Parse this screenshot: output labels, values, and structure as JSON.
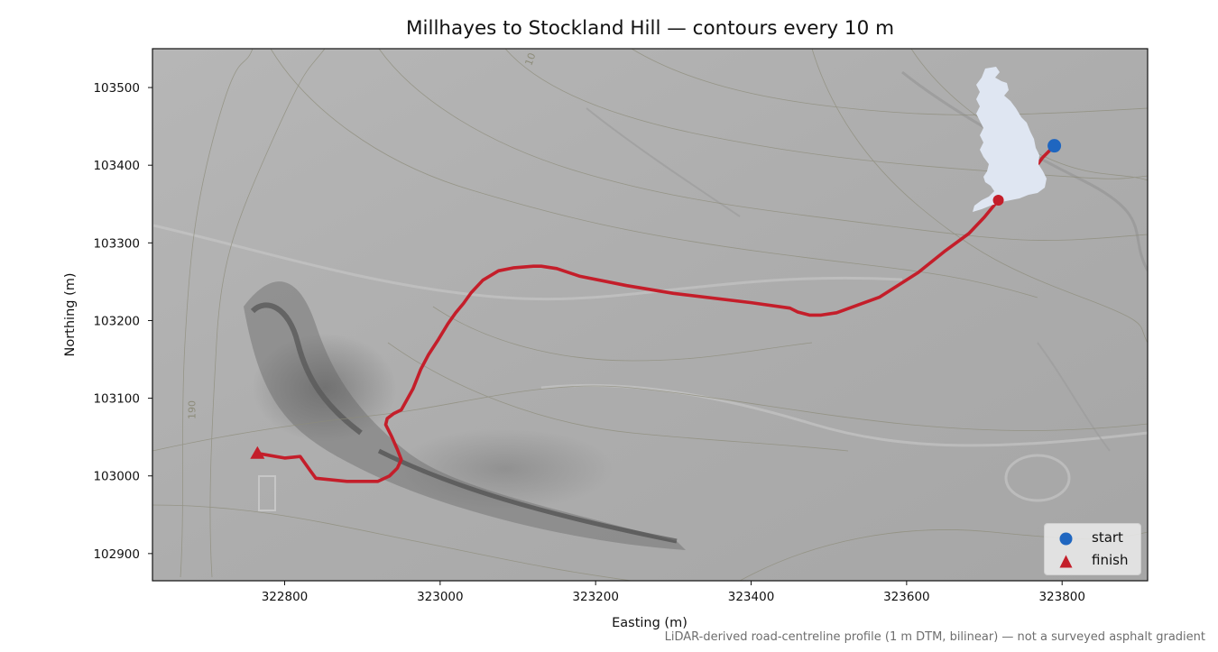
{
  "title": "Millhayes to Stockland Hill — contours every 10 m",
  "footnote": "LiDAR-derived road-centreline profile (1 m DTM, bilinear) — not a surveyed asphalt gradient",
  "chart_data": {
    "type": "map-line",
    "xlabel": "Easting (m)",
    "ylabel": "Northing (m)",
    "xlim": [
      322630,
      323910
    ],
    "ylim": [
      102865,
      103550
    ],
    "xticks": [
      322800,
      323000,
      323200,
      323400,
      323600,
      323800
    ],
    "yticks": [
      102900,
      103000,
      103100,
      103200,
      103300,
      103400,
      103500
    ],
    "contour_interval_m": 10,
    "contour_labels": [
      {
        "text": "190",
        "x": 322685,
        "y": 103085,
        "rotation": -90
      },
      {
        "text": "10",
        "x": 323120,
        "y": 103535,
        "rotation": -70
      }
    ],
    "route": {
      "color": "#c41e2a",
      "x": [
        323790,
        323775,
        323762,
        323740,
        323718,
        323700,
        323680,
        323650,
        323615,
        323565,
        323510,
        323490,
        323475,
        323460,
        323450,
        323400,
        323300,
        323240,
        323180,
        323150,
        323130,
        323120,
        323095,
        323075,
        323055,
        323040,
        323030,
        323020,
        323010,
        322998,
        322985,
        322975,
        322965,
        322950,
        322940,
        322932,
        322930,
        322938,
        322945,
        322950,
        322945,
        322935,
        322920,
        322880,
        322840,
        322832,
        322820,
        322800,
        322765
      ],
      "y": [
        103425,
        103410,
        103392,
        103372,
        103355,
        103333,
        103312,
        103290,
        103262,
        103230,
        103210,
        103207,
        103207,
        103211,
        103216,
        103223,
        103235,
        103245,
        103257,
        103267,
        103270,
        103270,
        103268,
        103264,
        103252,
        103236,
        103222,
        103210,
        103196,
        103176,
        103156,
        103137,
        103112,
        103085,
        103080,
        103074,
        103066,
        103050,
        103034,
        103021,
        103010,
        103000,
        102993,
        102993,
        102997,
        103008,
        103025,
        103023,
        103029
      ]
    },
    "start": {
      "label": "start",
      "x": 323790,
      "y": 103425,
      "color": "#1f66c0",
      "marker": "circle"
    },
    "finish": {
      "label": "finish",
      "x": 322765,
      "y": 103029,
      "color": "#c41e2a",
      "marker": "triangle"
    },
    "inset_map": {
      "name": "uk-locator",
      "fill": "#dfe6f2",
      "marker": {
        "x": 323718,
        "y": 103355,
        "color": "#c41e2a"
      }
    },
    "legend": {
      "placement": "lower-right",
      "entries": [
        "start",
        "finish"
      ]
    },
    "background": "hillshade"
  }
}
